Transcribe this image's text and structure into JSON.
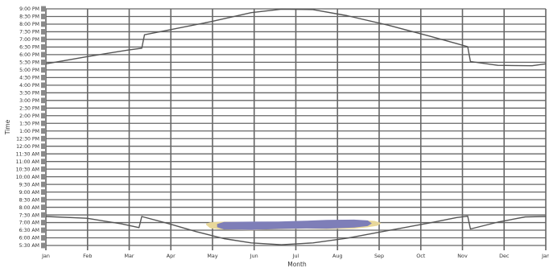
{
  "chart_data": {
    "type": "line",
    "xlabel": "Month",
    "ylabel": "Time",
    "x_ticks": [
      "Jan",
      "Feb",
      "Mar",
      "Apr",
      "May",
      "Jun",
      "Jul",
      "Aug",
      "Sep",
      "Oct",
      "Nov",
      "Dec",
      "Jan"
    ],
    "y_ticks": [
      "5:30 AM",
      "6:00 AM",
      "6:30 AM",
      "7:00 AM",
      "7:30 AM",
      "8:00 AM",
      "8:30 AM",
      "9:00 AM",
      "9:30 AM",
      "10:00 AM",
      "10:30 AM",
      "11:00 AM",
      "11:30 AM",
      "12:00 PM",
      "12:30 PM",
      "1:00 PM",
      "1:30 PM",
      "2:00 PM",
      "2:30 PM",
      "3:00 PM",
      "3:30 PM",
      "4:00 PM",
      "4:30 PM",
      "5:00 PM",
      "5:30 PM",
      "6:00 PM",
      "6:30 PM",
      "7:00 PM",
      "7:30 PM",
      "8:00 PM",
      "8:30 PM",
      "9:00 PM"
    ],
    "x_range_days": [
      0,
      365
    ],
    "y_range_hours": [
      5.5,
      21.0
    ],
    "grid": true,
    "series": [
      {
        "points": [
          [
            0,
            17.4
          ],
          [
            30,
            17.87
          ],
          [
            60,
            18.3
          ],
          [
            70,
            18.42
          ],
          [
            72,
            19.3
          ],
          [
            90,
            19.62
          ],
          [
            120,
            20.15
          ],
          [
            150,
            20.75
          ],
          [
            172,
            20.98
          ],
          [
            195,
            20.95
          ],
          [
            220,
            20.55
          ],
          [
            250,
            19.93
          ],
          [
            280,
            19.22
          ],
          [
            300,
            18.72
          ],
          [
            308,
            18.52
          ],
          [
            310,
            17.55
          ],
          [
            330,
            17.3
          ],
          [
            355,
            17.27
          ],
          [
            365,
            17.4
          ]
        ]
      },
      {
        "points": [
          [
            0,
            7.4
          ],
          [
            30,
            7.28
          ],
          [
            55,
            6.92
          ],
          [
            68,
            6.67
          ],
          [
            70,
            7.4
          ],
          [
            90,
            6.92
          ],
          [
            110,
            6.4
          ],
          [
            130,
            5.95
          ],
          [
            150,
            5.67
          ],
          [
            172,
            5.55
          ],
          [
            195,
            5.67
          ],
          [
            220,
            5.98
          ],
          [
            250,
            6.48
          ],
          [
            280,
            6.97
          ],
          [
            300,
            7.33
          ],
          [
            308,
            7.42
          ],
          [
            310,
            6.58
          ],
          [
            330,
            7.03
          ],
          [
            350,
            7.37
          ],
          [
            365,
            7.4
          ]
        ]
      }
    ],
    "bands": [
      {
        "color": "#e8d79a",
        "x": [
          117,
          120,
          130,
          150,
          170,
          190,
          205,
          225,
          240,
          245,
          242,
          235,
          225,
          205,
          190,
          170,
          150,
          130,
          120,
          117
        ],
        "y": [
          6.94,
          7.02,
          7.06,
          7.04,
          7.05,
          7.09,
          7.14,
          7.18,
          7.11,
          6.97,
          6.79,
          6.69,
          6.6,
          6.57,
          6.6,
          6.56,
          6.49,
          6.53,
          6.63,
          6.85
        ]
      },
      {
        "color": "#7e7eb8",
        "x": [
          125,
          130,
          150,
          170,
          190,
          205,
          225,
          235,
          238,
          235,
          225,
          205,
          190,
          170,
          150,
          130,
          125
        ],
        "y": [
          6.9,
          7.04,
          7.06,
          7.07,
          7.12,
          7.17,
          7.19,
          7.14,
          6.95,
          6.77,
          6.67,
          6.6,
          6.61,
          6.58,
          6.52,
          6.55,
          6.7
        ]
      }
    ],
    "colors": {
      "grid": "#666666",
      "line": "#555555",
      "axis_bar": "#8a8a8a"
    }
  }
}
